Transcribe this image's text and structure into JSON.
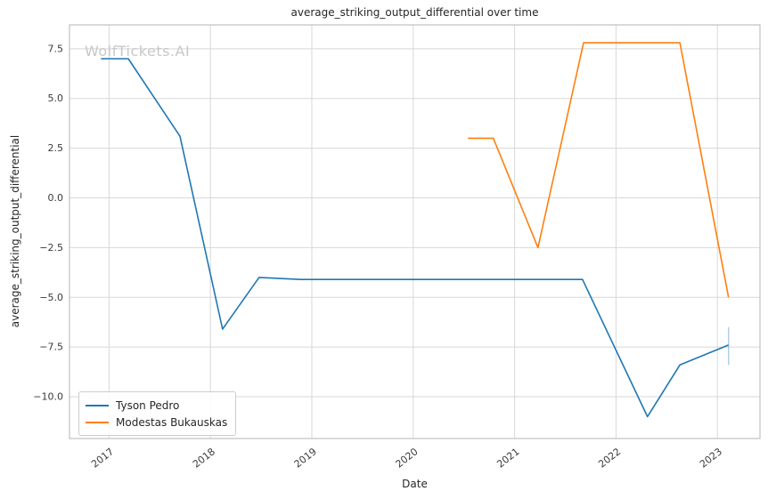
{
  "watermark": "WolfTickets.AI",
  "theme": {
    "grid_color": "#d8d8d8",
    "spine_color": "#c0c0c0",
    "text_color": "#262626",
    "tick_color": "#3a3a3a",
    "watermark_color": "#c8c8c8",
    "background": "#ffffff"
  },
  "chart_data": {
    "type": "line",
    "title": "average_striking_output_differential over time",
    "xlabel": "Date",
    "ylabel": "average_striking_output_differential",
    "grid": true,
    "legend_position": "lower left",
    "xlim": [
      2016.61,
      2023.42
    ],
    "ylim": [
      -12.1,
      8.7
    ],
    "xticks": {
      "values": [
        2017,
        2018,
        2019,
        2020,
        2021,
        2022,
        2023
      ],
      "labels": [
        "2017",
        "2018",
        "2019",
        "2020",
        "2021",
        "2022",
        "2023"
      ]
    },
    "yticks": {
      "values": [
        7.5,
        5.0,
        2.5,
        0.0,
        -2.5,
        -5.0,
        -7.5,
        -10.0
      ],
      "labels": [
        "7.5",
        "5.0",
        "2.5",
        "0.0",
        "−2.5",
        "−5.0",
        "−7.5",
        "−10.0"
      ]
    },
    "series": [
      {
        "name": "Tyson Pedro",
        "color": "#1f77b4",
        "x": [
          2016.92,
          2017.19,
          2017.7,
          2018.12,
          2018.48,
          2018.89,
          2021.67,
          2022.31,
          2022.63,
          2023.11
        ],
        "y": [
          7.0,
          7.0,
          3.1,
          -6.6,
          -4.0,
          -4.1,
          -4.1,
          -11.0,
          -8.4,
          -7.4
        ]
      },
      {
        "name": "Modestas Bukauskas",
        "color": "#ff7f0e",
        "x": [
          2020.54,
          2020.79,
          2021.23,
          2021.68,
          2022.63,
          2023.11
        ],
        "y": [
          3.0,
          3.0,
          -2.5,
          7.8,
          7.8,
          -5.0
        ]
      }
    ],
    "error_bar": {
      "series": "Tyson Pedro",
      "x": 2023.11,
      "y_low": -8.4,
      "y_high": -6.5,
      "color": "rgba(31,119,180,0.35)"
    }
  }
}
